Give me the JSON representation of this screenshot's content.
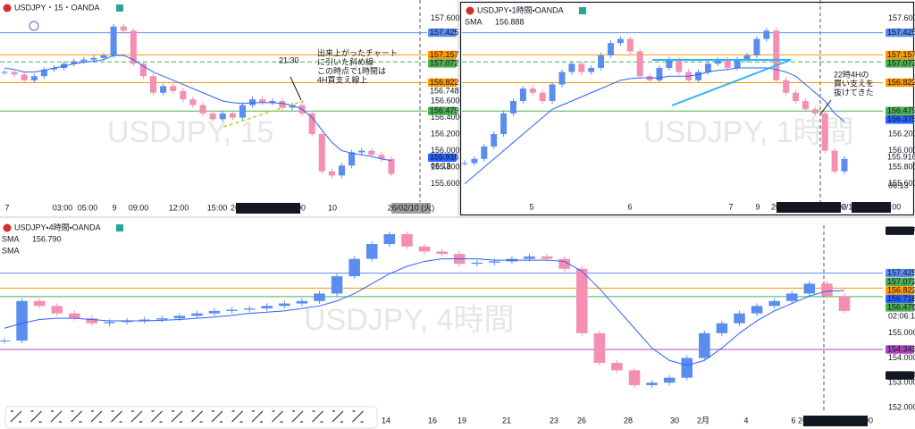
{
  "panels": [
    {
      "title": "USDJPY・15・OANDA",
      "watermark": "USDJPY, 15",
      "ylim": [
        155.38,
        157.82
      ],
      "yticks": [
        {
          "value": 157.6,
          "label": "157.600"
        },
        {
          "value": 156.6,
          "label": "156.600"
        },
        {
          "value": 156.4,
          "label": "156.400"
        },
        {
          "value": 156.2,
          "label": "156.200"
        },
        {
          "value": 156,
          "label": "156.000"
        },
        {
          "value": 155.8,
          "label": "155.800"
        },
        {
          "value": 155.6,
          "label": "155.600"
        }
      ],
      "price_tags": [
        {
          "value": 157.425,
          "color": "#5b8def",
          "line": true
        },
        {
          "value": 157.157,
          "color": "#ff9800",
          "line": true
        },
        {
          "value": 157.072,
          "color": "#4caf50",
          "line": true,
          "dashed": true
        },
        {
          "value": 156.822,
          "color": "#ff9800",
          "line": true
        },
        {
          "value": 156.748,
          "color": "#e53935",
          "outline": true
        },
        {
          "value": 156.479,
          "color": "#4caf50",
          "line": true
        },
        {
          "value": 155.916,
          "color": "#2962ff"
        }
      ],
      "countdown": "06:13",
      "time_labels": [
        "7",
        "03:00",
        "05:00",
        "9",
        "09:00",
        "12:00",
        "15:00",
        "10"
      ],
      "cursor_time": "26/02/09 (月)　19:00",
      "next_date": "26/02/10 (火)",
      "annotation_time": "21:30",
      "annotation": [
        "出来上がったチャート",
        "に引いた斜め線",
        "この時点で1時間は",
        "4H買支え線上"
      ],
      "closes": [
        156.95,
        156.92,
        156.85,
        156.9,
        156.98,
        157.0,
        157.05,
        157.08,
        157.1,
        157.12,
        157.15,
        157.5,
        157.45,
        157.05,
        156.9,
        156.7,
        156.78,
        156.72,
        156.62,
        156.55,
        156.45,
        156.38,
        156.45,
        156.4,
        156.55,
        156.62,
        156.58,
        156.6,
        156.52,
        156.55,
        156.45,
        156.2,
        155.75,
        155.7,
        155.82,
        155.98,
        156.0,
        155.95,
        155.9,
        155.72
      ],
      "sma": [
        157.0,
        156.98,
        156.95,
        156.95,
        156.97,
        157.0,
        157.02,
        157.05,
        157.07,
        157.08,
        157.1,
        157.15,
        157.15,
        157.1,
        157.02,
        156.95,
        156.9,
        156.85,
        156.8,
        156.75,
        156.7,
        156.65,
        156.6,
        156.58,
        156.57,
        156.58,
        156.58,
        156.58,
        156.57,
        156.55,
        156.5,
        156.4,
        156.25,
        156.1,
        156.0,
        155.97,
        155.95,
        155.93,
        155.9,
        155.88
      ]
    },
    {
      "title": "USDJPY・1時間・OANDA",
      "watermark": "USDJPY, 1時間",
      "indicator": "SMA",
      "indicator_value": "156.888",
      "ylim": [
        155.38,
        157.82
      ],
      "yticks": [
        {
          "value": 157.6,
          "label": "157.600"
        },
        {
          "value": 156.2,
          "label": "156.200"
        },
        {
          "value": 156,
          "label": "156.000"
        },
        {
          "value": 155.8,
          "label": "155.800"
        },
        {
          "value": 155.6,
          "label": "155.600"
        }
      ],
      "price_tags": [
        {
          "value": 157.425,
          "color": "#5b8def",
          "line": true
        },
        {
          "value": 157.157,
          "color": "#ff9800",
          "line": true
        },
        {
          "value": 157.072,
          "color": "#4caf50",
          "line": true,
          "dashed": true
        },
        {
          "value": 156.822,
          "color": "#ff9800",
          "line": true
        },
        {
          "value": 156.479,
          "color": "#4caf50",
          "line": true
        },
        {
          "value": 156.375,
          "color": "#2962ff"
        },
        {
          "value": 155.916,
          "color": "#e57373",
          "outline": true
        }
      ],
      "countdown": "06:13",
      "time_labels": [
        "5",
        "6",
        "7",
        "9"
      ],
      "cursor_time": "26/02/09 (月)　19:00",
      "next_date": "2/10 (火)　07:00",
      "annotation": [
        "22時4Hの",
        "買い支えを",
        "抜けてきた"
      ],
      "closes": [
        155.85,
        155.9,
        156.05,
        156.2,
        156.45,
        156.6,
        156.75,
        156.7,
        156.6,
        156.8,
        156.95,
        157.05,
        156.95,
        157.0,
        157.15,
        157.3,
        157.35,
        157.2,
        156.9,
        156.85,
        157.0,
        157.1,
        156.95,
        156.85,
        156.95,
        157.05,
        157.1,
        157.0,
        157.1,
        157.15,
        157.35,
        157.45,
        156.85,
        156.7,
        156.6,
        156.5,
        156.45,
        156.0,
        155.75,
        155.9
      ],
      "sma": [
        155.6,
        155.7,
        155.8,
        155.9,
        156.0,
        156.1,
        156.2,
        156.3,
        156.4,
        156.5,
        156.55,
        156.6,
        156.65,
        156.7,
        156.75,
        156.8,
        156.85,
        156.87,
        156.88,
        156.88,
        156.88,
        156.9,
        156.9,
        156.9,
        156.92,
        156.95,
        156.97,
        156.98,
        157.0,
        157.0,
        157.0,
        157.0,
        156.98,
        156.95,
        156.9,
        156.8,
        156.7,
        156.6,
        156.45,
        156.35
      ]
    },
    {
      "title": "USDJPY・4時間・OANDA",
      "watermark": "USDJPY, 4時間",
      "indicator": "SMA",
      "indicator_value": "156.790",
      "indicator2": "SMA",
      "ylim": [
        151.78,
        159.36
      ],
      "yticks": [
        {
          "value": 156,
          "label": "156.000"
        },
        {
          "value": 155,
          "label": "155.000"
        },
        {
          "value": 154,
          "label": "154.000"
        },
        {
          "value": 153,
          "label": "153.000"
        },
        {
          "value": 152,
          "label": "152.000"
        }
      ],
      "price_tags": [
        {
          "value": 159.137,
          "color": "#131722"
        },
        {
          "value": 157.425,
          "color": "#5b8def",
          "line": true
        },
        {
          "value": 157.072,
          "color": "#4caf50"
        },
        {
          "value": 156.822,
          "color": "#ff9800",
          "line": true
        },
        {
          "value": 156.718,
          "color": "#2962ff"
        },
        {
          "value": 156.479,
          "color": "#4caf50",
          "line": true
        },
        {
          "value": 154.343,
          "color": "#ab47bc",
          "line": true
        },
        {
          "value": 153.294,
          "color": "#131722"
        }
      ],
      "countdown": "02:06:13",
      "time_labels": [
        "14",
        "16",
        "19",
        "21",
        "23",
        "26",
        "28",
        "30",
        "2月",
        "4",
        "6"
      ],
      "cursor_time": "26/02/09 (月)　19:00",
      "closes": [
        154.7,
        156.3,
        156.1,
        155.8,
        155.6,
        155.4,
        155.45,
        155.5,
        155.55,
        155.6,
        155.7,
        155.8,
        155.9,
        155.95,
        156.0,
        156.1,
        156.2,
        156.3,
        156.6,
        157.3,
        158.0,
        158.6,
        159.0,
        158.5,
        158.3,
        158.2,
        157.8,
        157.85,
        157.9,
        158.0,
        158.1,
        158.0,
        157.6,
        155.0,
        153.8,
        153.5,
        152.9,
        153.0,
        153.2,
        154.0,
        155.0,
        155.4,
        155.8,
        156.1,
        156.3,
        156.6,
        157.0,
        156.5,
        155.9
      ],
      "sma": [
        155.2,
        155.4,
        155.55,
        155.6,
        155.6,
        155.55,
        155.5,
        155.5,
        155.5,
        155.52,
        155.55,
        155.6,
        155.65,
        155.72,
        155.8,
        155.85,
        155.9,
        156.0,
        156.1,
        156.3,
        156.6,
        157.0,
        157.4,
        157.7,
        157.9,
        158.0,
        158.0,
        158.0,
        157.95,
        157.95,
        157.95,
        157.95,
        157.9,
        157.5,
        156.8,
        156.0,
        155.2,
        154.4,
        153.9,
        153.7,
        153.9,
        154.4,
        155.0,
        155.5,
        155.9,
        156.2,
        156.5,
        156.7,
        156.72
      ]
    }
  ]
}
